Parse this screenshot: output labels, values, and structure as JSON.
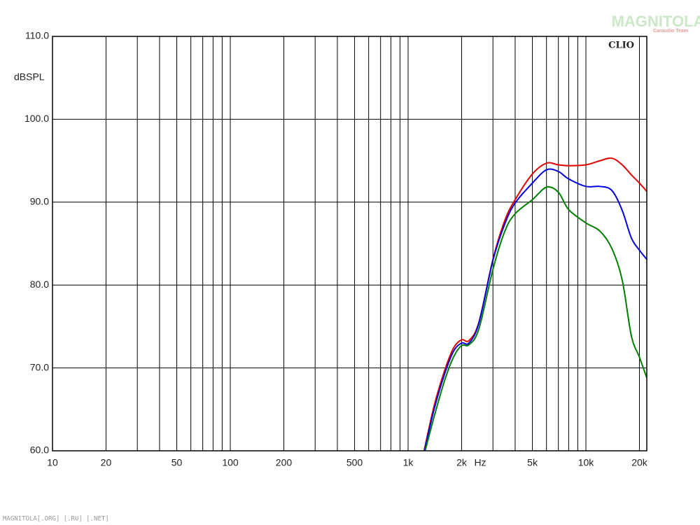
{
  "chart_data": {
    "type": "line",
    "title": "CLIO",
    "y_label": "dBSPL",
    "x_label": "Hz",
    "watermark": "MAGNITOLA",
    "watermark_sub": "Caraudio Team",
    "footer": "MAGNITOLA[.ORG] [.RU] [.NET]",
    "x_scale": "log",
    "grid": true,
    "xlim": [
      10,
      22000
    ],
    "ylim": [
      60,
      110
    ],
    "xticks": [
      10,
      20,
      50,
      100,
      200,
      500,
      {
        "value": 1000,
        "label": "1k"
      },
      {
        "value": 2000,
        "label": "2k"
      },
      {
        "value": 5000,
        "label": "5k"
      },
      {
        "value": 10000,
        "label": "10k"
      },
      {
        "value": 20000,
        "label": "20k"
      }
    ],
    "xgrid": [
      10,
      20,
      30,
      40,
      50,
      60,
      70,
      80,
      90,
      100,
      200,
      300,
      400,
      500,
      600,
      700,
      800,
      900,
      1000,
      2000,
      3000,
      4000,
      5000,
      6000,
      7000,
      8000,
      9000,
      10000,
      20000
    ],
    "yticks": [
      {
        "value": 60,
        "label": "60.0"
      },
      {
        "value": 70,
        "label": "70.0"
      },
      {
        "value": 80,
        "label": "80.0"
      },
      {
        "value": 90,
        "label": "90.0"
      },
      {
        "value": 100,
        "label": "100.0"
      },
      {
        "value": 110,
        "label": "110.0"
      }
    ],
    "x": [
      1230,
      1400,
      1600,
      1800,
      2000,
      2200,
      2500,
      3000,
      3500,
      4000,
      5000,
      6000,
      7000,
      8000,
      10000,
      12000,
      14000,
      16000,
      18000,
      20000,
      22000
    ],
    "series": [
      {
        "color": "#e00000",
        "values": [
          60,
          65.4,
          69.6,
          72.4,
          73.4,
          73.3,
          75.5,
          83.1,
          87.8,
          90.3,
          93.4,
          94.7,
          94.5,
          94.4,
          94.5,
          95,
          95.3,
          94.5,
          93.3,
          92.3,
          91.3
        ]
      },
      {
        "color": "#0000e0",
        "values": [
          59.8,
          65,
          69.2,
          72,
          73,
          73,
          75.4,
          83,
          87.4,
          89.9,
          92.3,
          93.9,
          93.7,
          92.8,
          91.9,
          91.9,
          91.4,
          89,
          85.7,
          84.2,
          83.1
        ]
      },
      {
        "color": "#008000",
        "values": [
          59.5,
          64.1,
          68.4,
          71.3,
          72.7,
          72.8,
          74.7,
          81.9,
          86.5,
          88.6,
          90.3,
          91.8,
          91.2,
          89.1,
          87.5,
          86.5,
          84.4,
          80.6,
          73.9,
          71.3,
          68.8
        ]
      }
    ]
  }
}
